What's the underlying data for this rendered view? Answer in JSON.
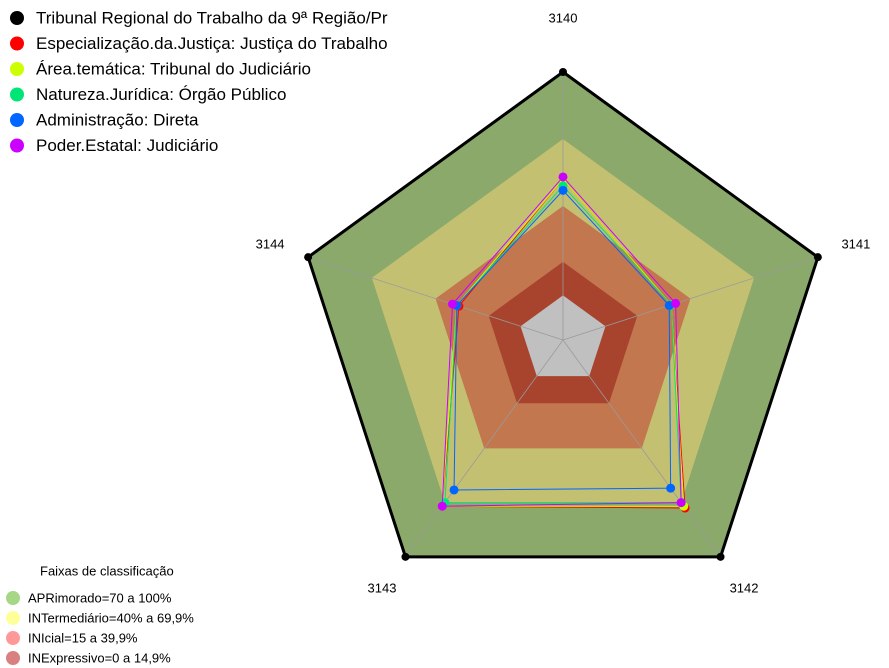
{
  "chart_data": {
    "type": "radar",
    "categories": [
      "3140",
      "3141",
      "3142",
      "3143",
      "3144"
    ],
    "ylim": [
      -20,
      100
    ],
    "series": [
      {
        "name": "Tribunal Regional do Trabalho da 9ª Região/Pr",
        "color": "#000000",
        "values": [
          100,
          100,
          100,
          100,
          100
        ]
      },
      {
        "name": "Especialização.da.Justiça: Justiça do Trabalho",
        "color": "#ff0000",
        "values": [
          52,
          31,
          73,
          72,
          29
        ]
      },
      {
        "name": "Área.temática: Tribunal do Judiciário",
        "color": "#ccff00",
        "values": [
          52,
          31,
          72,
          72,
          30
        ]
      },
      {
        "name": "Natureza.Jurídica: Órgão Público",
        "color": "#00e676",
        "values": [
          49,
          31,
          70,
          70,
          30
        ]
      },
      {
        "name": "Administração: Direta",
        "color": "#0066ff",
        "values": [
          47,
          30,
          62,
          63,
          30
        ]
      },
      {
        "name": "Poder.Estatal: Judiciário",
        "color": "#cc00ff",
        "values": [
          53,
          33,
          70,
          72,
          32
        ]
      }
    ],
    "bands_title": "Faixas de classificação",
    "bands": [
      {
        "label": "APRimorado=70 a 100%",
        "from": 70,
        "to": 100,
        "color": "#8aa96a",
        "legend_color": "#a6d785"
      },
      {
        "label": "INTermediário=40% a 69,9%",
        "from": 40,
        "to": 70,
        "color": "#c4c072",
        "legend_color": "#ffff99"
      },
      {
        "label": "INIcial=15 a 39,9%",
        "from": 15,
        "to": 40,
        "color": "#c2774e",
        "legend_color": "#ff9999"
      },
      {
        "label": "INExpressivo=0 a 14,9%",
        "from": 0,
        "to": 15,
        "color": "#a8432e",
        "legend_color": "#d98080"
      }
    ]
  }
}
